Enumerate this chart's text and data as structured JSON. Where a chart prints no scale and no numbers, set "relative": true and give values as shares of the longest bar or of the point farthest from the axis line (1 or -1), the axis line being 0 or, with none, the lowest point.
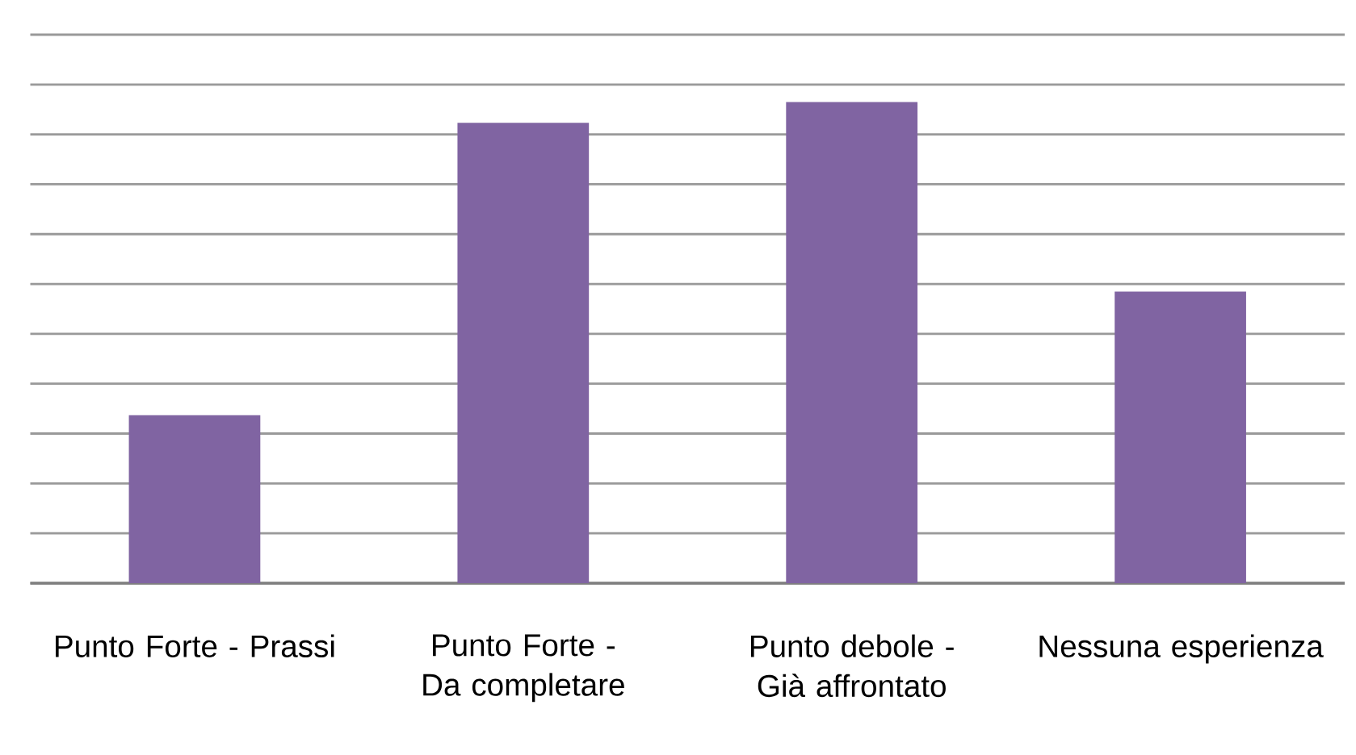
{
  "chart_data": {
    "type": "bar",
    "relative": true,
    "grid": "y",
    "color": "#8064a2",
    "categories": [
      "Punto Forte - Prassi",
      "Punto Forte - Da completare",
      "Punto debole - Già affrontato",
      "Nessuna esperienza"
    ],
    "values": [
      0.349,
      0.957,
      1,
      0.606
    ]
  }
}
